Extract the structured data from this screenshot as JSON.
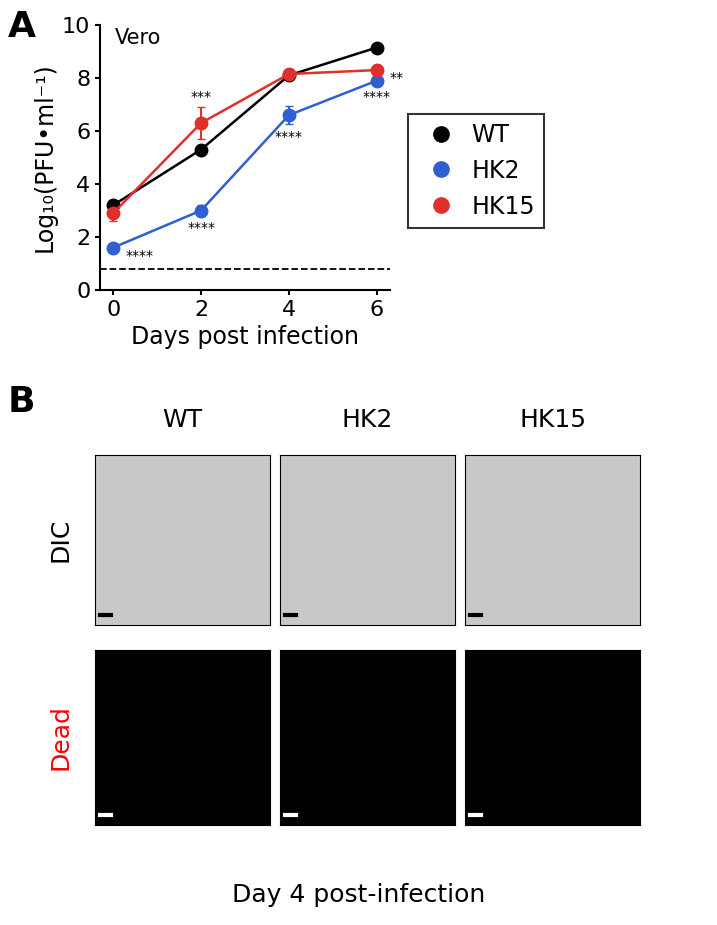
{
  "chart_data": {
    "type": "line",
    "label": "A",
    "title": "Vero",
    "x_label": "Days post infection",
    "y_label": "Log₁₀(PFU•ml⁻¹)",
    "x": [
      0,
      2,
      4,
      6
    ],
    "series": [
      {
        "name": "WT",
        "color": "#000000",
        "marker": "o",
        "values": [
          3.2,
          5.3,
          8.1,
          9.15
        ],
        "errors": [
          0.15,
          0.15,
          0.15,
          0.1
        ]
      },
      {
        "name": "HK2",
        "color": "#2f5fd0",
        "marker": "o",
        "values": [
          1.6,
          3.0,
          6.6,
          7.9
        ],
        "errors": [
          0.15,
          0.2,
          0.35,
          0.15
        ]
      },
      {
        "name": "HK15",
        "color": "#e0302a",
        "marker": "o",
        "values": [
          2.9,
          6.3,
          8.15,
          8.3
        ],
        "errors": [
          0.3,
          0.6,
          0.1,
          0.1
        ]
      }
    ],
    "detection_limit": 0.8,
    "annotations": [
      {
        "text": "****",
        "x": 0,
        "series": "HK2",
        "position": "right"
      },
      {
        "text": "***",
        "x": 2,
        "series": "HK15",
        "position": "above"
      },
      {
        "text": "****",
        "x": 2,
        "series": "HK2",
        "position": "below"
      },
      {
        "text": "****",
        "x": 4,
        "series": "HK2",
        "position": "below"
      },
      {
        "text": "****",
        "x": 6,
        "series": "HK2",
        "position": "below"
      },
      {
        "text": "**",
        "x": 6,
        "series": "HK15",
        "position": "right"
      }
    ],
    "xlim": [
      -0.3,
      6.3
    ],
    "xticks": [
      0,
      2,
      4,
      6
    ],
    "ylim": [
      0,
      10
    ],
    "yticks": [
      0,
      2,
      4,
      6,
      8,
      10
    ],
    "legend": "center left"
  },
  "panel_b": {
    "label": "B",
    "columns": [
      "WT",
      "HK2",
      "HK15"
    ],
    "rows": [
      {
        "label": "DIC",
        "color": "#000000"
      },
      {
        "label": "Dead",
        "color": "#ff0000"
      }
    ],
    "caption": "Day 4 post-infection"
  }
}
